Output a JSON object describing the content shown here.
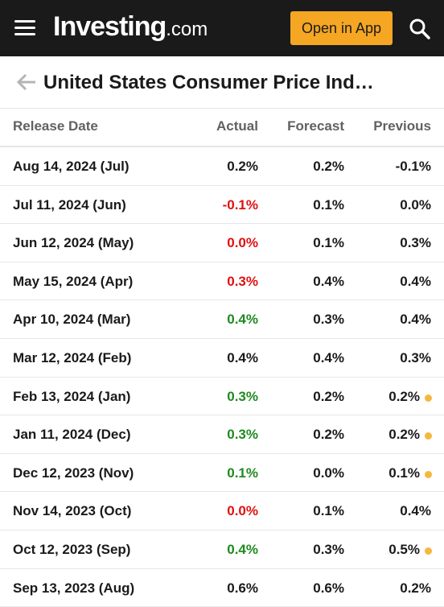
{
  "header": {
    "brand": "Investing",
    "tld": ".com",
    "open_app_label": "Open in App"
  },
  "page": {
    "title": "United States Consumer Price Ind…"
  },
  "table": {
    "columns": [
      "Release Date",
      "Actual",
      "Forecast",
      "Previous"
    ],
    "colors": {
      "positive": "#1e8a1e",
      "negative": "#e01010",
      "neutral": "#1a1a1a",
      "revised_dot": "#f5b83d"
    },
    "rows": [
      {
        "date": "Aug 14, 2024 (Jul)",
        "actual": "0.2%",
        "actual_status": "neutral",
        "forecast": "0.2%",
        "previous": "-0.1%",
        "revised": false
      },
      {
        "date": "Jul 11, 2024 (Jun)",
        "actual": "-0.1%",
        "actual_status": "negative",
        "forecast": "0.1%",
        "previous": "0.0%",
        "revised": false
      },
      {
        "date": "Jun 12, 2024 (May)",
        "actual": "0.0%",
        "actual_status": "negative",
        "forecast": "0.1%",
        "previous": "0.3%",
        "revised": false
      },
      {
        "date": "May 15, 2024 (Apr)",
        "actual": "0.3%",
        "actual_status": "negative",
        "forecast": "0.4%",
        "previous": "0.4%",
        "revised": false
      },
      {
        "date": "Apr 10, 2024 (Mar)",
        "actual": "0.4%",
        "actual_status": "positive",
        "forecast": "0.3%",
        "previous": "0.4%",
        "revised": false
      },
      {
        "date": "Mar 12, 2024 (Feb)",
        "actual": "0.4%",
        "actual_status": "neutral",
        "forecast": "0.4%",
        "previous": "0.3%",
        "revised": false
      },
      {
        "date": "Feb 13, 2024 (Jan)",
        "actual": "0.3%",
        "actual_status": "positive",
        "forecast": "0.2%",
        "previous": "0.2%",
        "revised": true
      },
      {
        "date": "Jan 11, 2024 (Dec)",
        "actual": "0.3%",
        "actual_status": "positive",
        "forecast": "0.2%",
        "previous": "0.2%",
        "revised": true
      },
      {
        "date": "Dec 12, 2023 (Nov)",
        "actual": "0.1%",
        "actual_status": "positive",
        "forecast": "0.0%",
        "previous": "0.1%",
        "revised": true
      },
      {
        "date": "Nov 14, 2023 (Oct)",
        "actual": "0.0%",
        "actual_status": "negative",
        "forecast": "0.1%",
        "previous": "0.4%",
        "revised": false
      },
      {
        "date": "Oct 12, 2023 (Sep)",
        "actual": "0.4%",
        "actual_status": "positive",
        "forecast": "0.3%",
        "previous": "0.5%",
        "revised": true
      },
      {
        "date": "Sep 13, 2023 (Aug)",
        "actual": "0.6%",
        "actual_status": "neutral",
        "forecast": "0.6%",
        "previous": "0.2%",
        "revised": false
      }
    ]
  }
}
